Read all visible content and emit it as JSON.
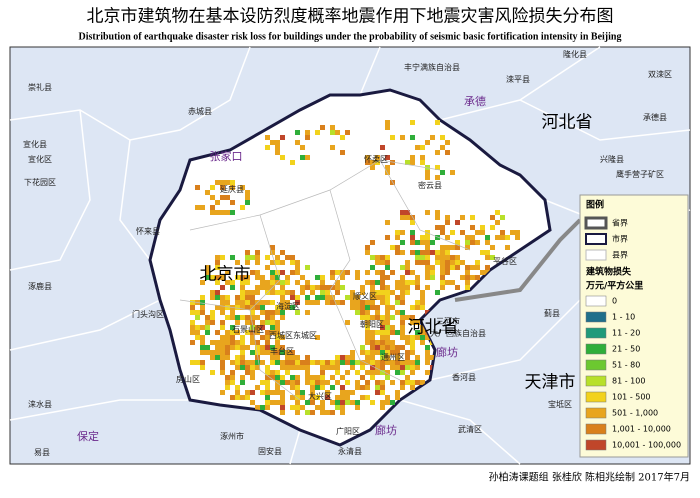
{
  "title": "北京市建筑物在基本设防烈度概率地震作用下地震灾害风险损失分布图",
  "subtitle": "Distribution of earthquake disaster risk loss for buildings under the probability of seismic basic fortification intensity in Beijing",
  "places": [
    "崇礼县",
    "赤城县",
    "丰宁满族自治县",
    "承德",
    "滦平县",
    "隆化县",
    "双滦区",
    "承德县",
    "河北省",
    "宣化县",
    "张家口",
    "怀柔区",
    "兴隆县",
    "宣化区",
    "鹰手营子矿区",
    "下花园区",
    "延庆县",
    "密云县",
    "怀来县",
    "平谷区",
    "涿鹿县",
    "北京市",
    "顺义区",
    "门头沟区",
    "海淀区",
    "朝阳区",
    "石景山区",
    "西城区东城区",
    "三河市",
    "大厂回族自治县",
    "河北省",
    "廊坊",
    "丰台区",
    "蓟县",
    "通州区",
    "房山区",
    "香河县",
    "大兴区",
    "天津市",
    "涞水县",
    "宝坻区",
    "保定",
    "涿州市",
    "固安县",
    "广阳区",
    "廊坊",
    "武清区",
    "易县",
    "永清县"
  ],
  "legend": {
    "title": "图例",
    "boundaries": [
      "省界",
      "市界",
      "县界"
    ],
    "loss_title": "建筑物损失",
    "unit": "万元/平方公里",
    "classes": [
      {
        "label": "0",
        "color": "#ffffff"
      },
      {
        "label": "1 - 10",
        "color": "#1f6f8b"
      },
      {
        "label": "11 - 20",
        "color": "#1f9a7a"
      },
      {
        "label": "21 - 50",
        "color": "#2fae3a"
      },
      {
        "label": "51 - 80",
        "color": "#6cc830"
      },
      {
        "label": "81 - 100",
        "color": "#b8e02a"
      },
      {
        "label": "101 - 500",
        "color": "#f2d21c"
      },
      {
        "label": "501 - 1,000",
        "color": "#e8a51e"
      },
      {
        "label": "1,001 - 10,000",
        "color": "#d9801c"
      },
      {
        "label": "10,001 - 100,000",
        "color": "#c0462a"
      }
    ]
  },
  "credit": "孙柏涛课题组 张桂欣 陈相兆绘制 2017年7月"
}
